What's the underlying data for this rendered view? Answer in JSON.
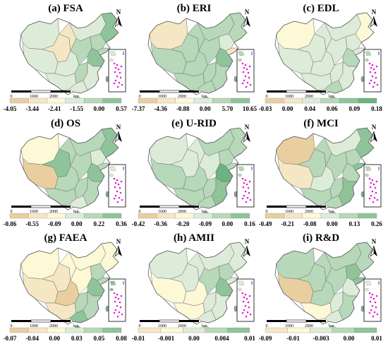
{
  "panels": [
    {
      "id": "a",
      "title": "(a) FSA",
      "ticks": [
        "-4.05",
        "-3.44",
        "-2.41",
        "-1.55",
        "0.00",
        "0.57"
      ],
      "scheme": "A"
    },
    {
      "id": "b",
      "title": "(b) ERI",
      "ticks": [
        "-7.37",
        "-4.36",
        "-0.88",
        "0.00",
        "5.70",
        "10.65"
      ],
      "scheme": "B"
    },
    {
      "id": "c",
      "title": "(c) EDL",
      "ticks": [
        "-0.03",
        "0.00",
        "0.04",
        "0.06",
        "0.09",
        "0.18"
      ],
      "scheme": "C"
    },
    {
      "id": "d",
      "title": "(d) OS",
      "ticks": [
        "-0.86",
        "-0.55",
        "-0.09",
        "0.00",
        "0.22",
        "0.36"
      ],
      "scheme": "D"
    },
    {
      "id": "e",
      "title": "(e) U-RID",
      "ticks": [
        "-0.42",
        "-0.36",
        "-0.20",
        "-0.09",
        "0.00",
        "0.16"
      ],
      "scheme": "E"
    },
    {
      "id": "f",
      "title": "(f) MCI",
      "ticks": [
        "-0.49",
        "-0.21",
        "-0.08",
        "0.00",
        "0.13",
        "0.26"
      ],
      "scheme": "F"
    },
    {
      "id": "g",
      "title": "(g) FAEA",
      "ticks": [
        "-0.07",
        "-0.04",
        "0.00",
        "0.03",
        "0.05",
        "0.08"
      ],
      "scheme": "G"
    },
    {
      "id": "h",
      "title": "(h) AMII",
      "ticks": [
        "-0.01",
        "-0.001",
        "0.00",
        "0.004",
        "0.01"
      ],
      "scheme": "H"
    },
    {
      "id": "i",
      "title": "(i) R&D",
      "ticks": [
        "-0.09",
        "-0.01",
        "-0.003",
        "0.00",
        "0.01"
      ],
      "scheme": "I"
    }
  ],
  "scale_bar": {
    "labels": [
      "0",
      "1000",
      "2000"
    ],
    "unit": "km"
  },
  "north_label": "N",
  "colors": {
    "tan": "#e9cf9f",
    "lighttan": "#f5e7c3",
    "cream": "#fdf8d6",
    "pale": "#ddecd8",
    "lightgreen": "#b7d8b9",
    "green": "#8fc49a",
    "darkgreen": "#6cb37f",
    "border": "#6e6e6e",
    "inset_dots": "#e020c8",
    "taiwan": "#8fa0a0"
  }
}
